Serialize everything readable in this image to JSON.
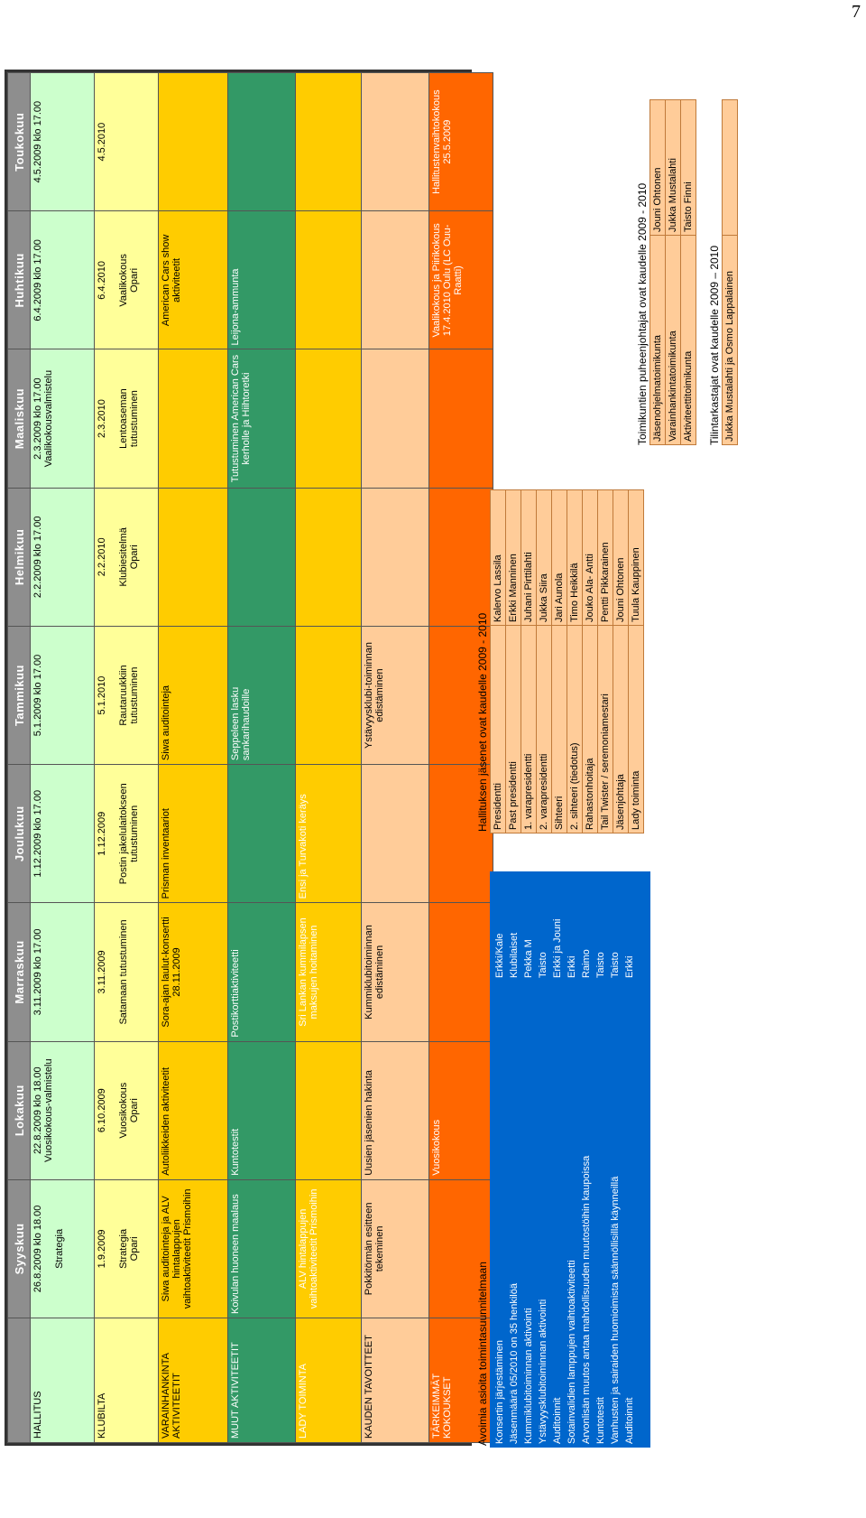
{
  "page_number": "7",
  "months": [
    "Syyskuu",
    "Lokakuu",
    "Marraskuu",
    "Joulukuu",
    "Tammikuu",
    "Helmikuu",
    "Maaliskuu",
    "Huhtikuu",
    "Toukokuu"
  ],
  "rows": {
    "hallitus": {
      "label": "HALLITUS",
      "cells": [
        {
          "line1": "26.8.2009 klo 18.00",
          "line2": "Strategia"
        },
        {
          "line1": "22.8.2009 klo 18.00",
          "line2": "Vuosikokous-valmistelu"
        },
        {
          "line1": "3.11.2009 klo 17.00",
          "line2": ""
        },
        {
          "line1": "1.12.2009 klo 17.00",
          "line2": ""
        },
        {
          "line1": "5.1.2009 klo 17.00",
          "line2": ""
        },
        {
          "line1": "2.2.2009 klo 17.00",
          "line2": ""
        },
        {
          "line1": "2.3.2009 klo 17.00",
          "line2": "Vaalikokousvalmistelu"
        },
        {
          "line1": "6.4.2009 klo 17.00",
          "line2": ""
        },
        {
          "line1": "4.5.2009 klo 17.00",
          "line2": ""
        }
      ]
    },
    "klubilta": {
      "label": "KLUBILTA",
      "cells": [
        {
          "date": "1.9.2009",
          "text": "Strategia",
          "place": "Opari"
        },
        {
          "date": "6.10.2009",
          "text": "Vuosikokous",
          "place": "Opari"
        },
        {
          "date": "3.11.2009",
          "text": "Satamaan tutustuminen",
          "place": ""
        },
        {
          "date": "1.12.2009",
          "text": "Postin jakelulaitokseen",
          "place": "tutustuminen"
        },
        {
          "date": "5.1.2010",
          "text": "Rautaruukkiin",
          "place": "tutustuminen"
        },
        {
          "date": "2.2.2010",
          "text": "Klubiesitelmä",
          "place": "Opari"
        },
        {
          "date": "2.3.2010",
          "text": "Lentoaseman",
          "place": "tutustuminen"
        },
        {
          "date": "6.4.2010",
          "text": "Vaalikokous",
          "place": "Opari"
        },
        {
          "date": "4.5.2010",
          "text": "",
          "place": ""
        }
      ]
    },
    "varainhankinta": {
      "label": "VARAINHANKINTA AKTIVITEETIT",
      "cells": [
        "Siwa auditointeja ja ALV hintalappujen vaihtoaktiviteetit Prismoihin",
        "Autoliikkeiden aktiviteetit",
        "Sora-ajan laulut-konsertti 28.11.2009",
        "Prisman inventaariot",
        "Siwa auditointeja",
        "",
        "",
        "American Cars show aktiviteetit",
        ""
      ]
    },
    "muut": {
      "label": "MUUT AKTIVITEETIT",
      "cells": [
        "Koivulan huoneen maalaus",
        "Kuntotestit",
        "Postikorttiaktiviteetti",
        "",
        "Seppeleen lasku sankarihaudoille",
        "",
        "Tutustuminen American Cars kerholle ja Hiihtoretki",
        "Leijona-ammunta",
        ""
      ]
    },
    "lady": {
      "label": "LADY TOIMINTA",
      "cells": [
        "ALV hintalappujen vaihtoaktiviteetit Prismoihin",
        "",
        "Sri Lankan kummilapsen maksujen hoitaminen",
        "Ensi ja Turvakoti keräys",
        "",
        "",
        "",
        "",
        ""
      ]
    },
    "kauden": {
      "label": "KAUDEN TAVOITTEET",
      "cells": [
        "Pokkitörmän esitteen tekeminen",
        "Uusien jäsenien hakinta",
        "Kummiklubitoiminnan edistäminen",
        "",
        "Ystävyysklubi-toiminnan edistäminen",
        "",
        "",
        "",
        ""
      ]
    },
    "tarkeimmat": {
      "label": "TÄRKEIMMÄT KOKOUKSET",
      "cells": [
        "",
        "Vuosikokous",
        "",
        "",
        "",
        "",
        "",
        "Vaalikokous ja Piirikokous 17.4.2010 Oulu (LC Ouu-Raatti)",
        "Hallitustenvaihtokokous 25.5.2009"
      ]
    }
  },
  "open_items": {
    "title": "Avoimia asioita toimintasuunnitelmaan",
    "items": [
      {
        "task": "Konsertin järjestäminen",
        "who": "Erkki/Kale"
      },
      {
        "task": "Jäsenmäärä 05/2010 on 35 henkilöä",
        "who": "Klubilaiset"
      },
      {
        "task": "Kummiklubitoiminnan aktivointi",
        "who": "Pekka M"
      },
      {
        "task": "Ystävyysklubitoiminnan aktivointi",
        "who": "Taisto"
      },
      {
        "task": "Auditoinnit",
        "who": "Erkki ja Jouni"
      },
      {
        "task": "Sotainvalidien lamppujen vaihtoaktiviteetti",
        "who": "Erkki"
      },
      {
        "task": "Arvonlisän muutos antaa mahdollisuuden muutostöihin kaupoissa",
        "who": "Raimo"
      },
      {
        "task": "Kuntotestit",
        "who": "Taisto"
      },
      {
        "task": "Vanhusten ja sairaiden huomioimista säännöllisillä käynneillä",
        "who": "Taisto"
      },
      {
        "task": "Auditoinnit",
        "who": "Erkki"
      }
    ]
  },
  "board": {
    "title": "Hallituksen jäsenet ovat kaudelle 2009 - 2010",
    "members": [
      {
        "role": "Presidentti",
        "name": "Kalervo Lassila"
      },
      {
        "role": "Past presidentti",
        "name": "Erkki Manninen"
      },
      {
        "role": "1. varapresidentti",
        "name": "Juhani Pirttilahti"
      },
      {
        "role": "2. varapresidentti",
        "name": "Jukka Siira"
      },
      {
        "role": "Sihteeri",
        "name": "Jari Aunola"
      },
      {
        "role": "2. sihteeri (tiedotus)",
        "name": "Timo Heikkilä"
      },
      {
        "role": "Rahastonhoitaja",
        "name": "Jouko Ala- Antti"
      },
      {
        "role": "Tail Twister / seremoniamestari",
        "name": "Pentti Pikkarainen"
      },
      {
        "role": "Jäsenjohtaja",
        "name": "Jouni Ohtonen"
      },
      {
        "role": "Lady toiminta",
        "name": "Tuula Kauppinen"
      }
    ]
  },
  "committees": {
    "title": "Toimikuntien puheenjohtajat ovat kaudelle 2009 - 2010",
    "members": [
      {
        "role": "Jäsenohjelmatoimikunta",
        "name": "Jouni Ohtonen"
      },
      {
        "role": "Varainhankintatoimikunta",
        "name": "Jukka Mustalahti"
      },
      {
        "role": "Aktiviteettitoimikunta",
        "name": "Taisto Finni"
      }
    ]
  },
  "auditors": {
    "title": "Tilintarkastajat ovat kaudelle 2009 – 2010",
    "members": [
      {
        "role": "Jukka Mustalahti ja Osmo Lappalainen",
        "name": ""
      }
    ]
  }
}
